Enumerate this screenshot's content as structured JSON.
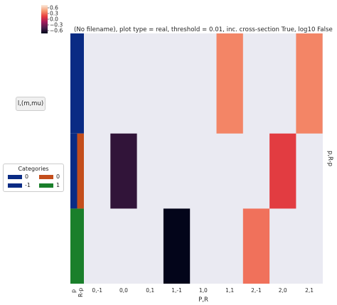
{
  "chart_data": {
    "type": "heatmap",
    "title": "(No filename), plot type = real, threshold = 0.01, inc. cross-section True, log10 False",
    "xlabel": "P,R",
    "ylabel": "p,R-p",
    "row_label": "l,(m,mu)",
    "column_ticks": [
      "0,-1",
      "0,0",
      "0,1",
      "1,-1",
      "1,0",
      "1,1",
      "2,-1",
      "2,0",
      "2,1"
    ],
    "row_groups": [
      {
        "p": 0,
        "R_p": -1,
        "rows": 4
      },
      {
        "p": 0,
        "R_p": 0,
        "rows": 3
      },
      {
        "p": 1,
        "R_p": 1,
        "rows": 3
      }
    ],
    "bands": [
      {
        "col": "1,1",
        "row_start": 0,
        "row_end": 4,
        "value": 0.3
      },
      {
        "col": "2,1",
        "row_start": 0,
        "row_end": 4,
        "value": 0.3
      },
      {
        "col": "0,0",
        "row_start": 4,
        "row_end": 7,
        "value": -0.45
      },
      {
        "col": "2,0",
        "row_start": 4,
        "row_end": 7,
        "value": 0.1
      },
      {
        "col": "1,-1",
        "row_start": 7,
        "row_end": 10,
        "value": -0.6
      },
      {
        "col": "2,-1",
        "row_start": 7,
        "row_end": 10,
        "value": 0.25
      }
    ],
    "background_value": 0,
    "colorbar": {
      "min": -0.6,
      "max": 0.6,
      "ticks": [
        "0.6",
        "0.3",
        "0.0",
        "−0.3",
        "−0.6"
      ]
    },
    "color_stops": [
      "#03051a",
      "#4c1d4b",
      "#a11a5b",
      "#e83f3f",
      "#f69c73",
      "#faebdd"
    ],
    "axis_labels": {
      "p": "p",
      "r_p": "R-p"
    },
    "legend": {
      "title": "Categories",
      "entries": [
        {
          "label": "0",
          "color": "#0a2b84"
        },
        {
          "label": "-1",
          "color": "#0a2b84"
        },
        {
          "label": "0",
          "color": "#c44e1c"
        },
        {
          "label": "1",
          "color": "#1a7f2b"
        }
      ]
    }
  }
}
